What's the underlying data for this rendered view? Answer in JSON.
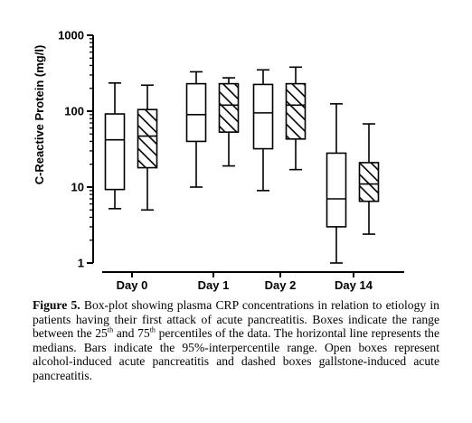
{
  "chart_data": {
    "type": "box",
    "ylabel": "C-Reactive Protein (mg/l)",
    "yscale": "log",
    "ylim": [
      1,
      1000
    ],
    "yticks": [
      1,
      10,
      100,
      1000
    ],
    "ytick_labels": [
      "1",
      "10",
      "100",
      "1000"
    ],
    "categories": [
      "Day 0",
      "Day 1",
      "Day 2",
      "Day 14"
    ],
    "series": [
      {
        "style": "open",
        "boxes": [
          {
            "whisker_low": 5.2,
            "q1": 9.3,
            "median": 42,
            "q3": 92,
            "whisker_high": 235
          },
          {
            "whisker_low": 10,
            "q1": 40,
            "median": 90,
            "q3": 230,
            "whisker_high": 330
          },
          {
            "whisker_low": 9,
            "q1": 32,
            "median": 95,
            "q3": 225,
            "whisker_high": 350
          },
          {
            "whisker_low": 1,
            "q1": 3,
            "median": 7,
            "q3": 28,
            "whisker_high": 125
          }
        ]
      },
      {
        "style": "hatched",
        "boxes": [
          {
            "whisker_low": 5,
            "q1": 18,
            "median": 47,
            "q3": 105,
            "whisker_high": 220
          },
          {
            "whisker_low": 19,
            "q1": 53,
            "median": 120,
            "q3": 230,
            "whisker_high": 275
          },
          {
            "whisker_low": 17,
            "q1": 43,
            "median": 120,
            "q3": 230,
            "whisker_high": 380
          },
          {
            "whisker_low": 2.4,
            "q1": 6.5,
            "median": 11,
            "q3": 21,
            "whisker_high": 68
          }
        ]
      }
    ]
  },
  "caption": {
    "label": "Figure 5.",
    "text_1": " Box-plot showing plasma CRP concentrations in relation to etiology in patients having their first attack of acute pancreatitis. Boxes indicate the range between the 25",
    "sup_1": "th",
    "text_2": " and 75",
    "sup_2": "th",
    "text_3": " percentiles of the data. The horizontal line represents the medians. Bars indicate the 95%-interpercentile range. Open boxes represent alcohol-induced acute pancreatitis and dashed boxes gallstone-induced acute pancreatitis."
  }
}
